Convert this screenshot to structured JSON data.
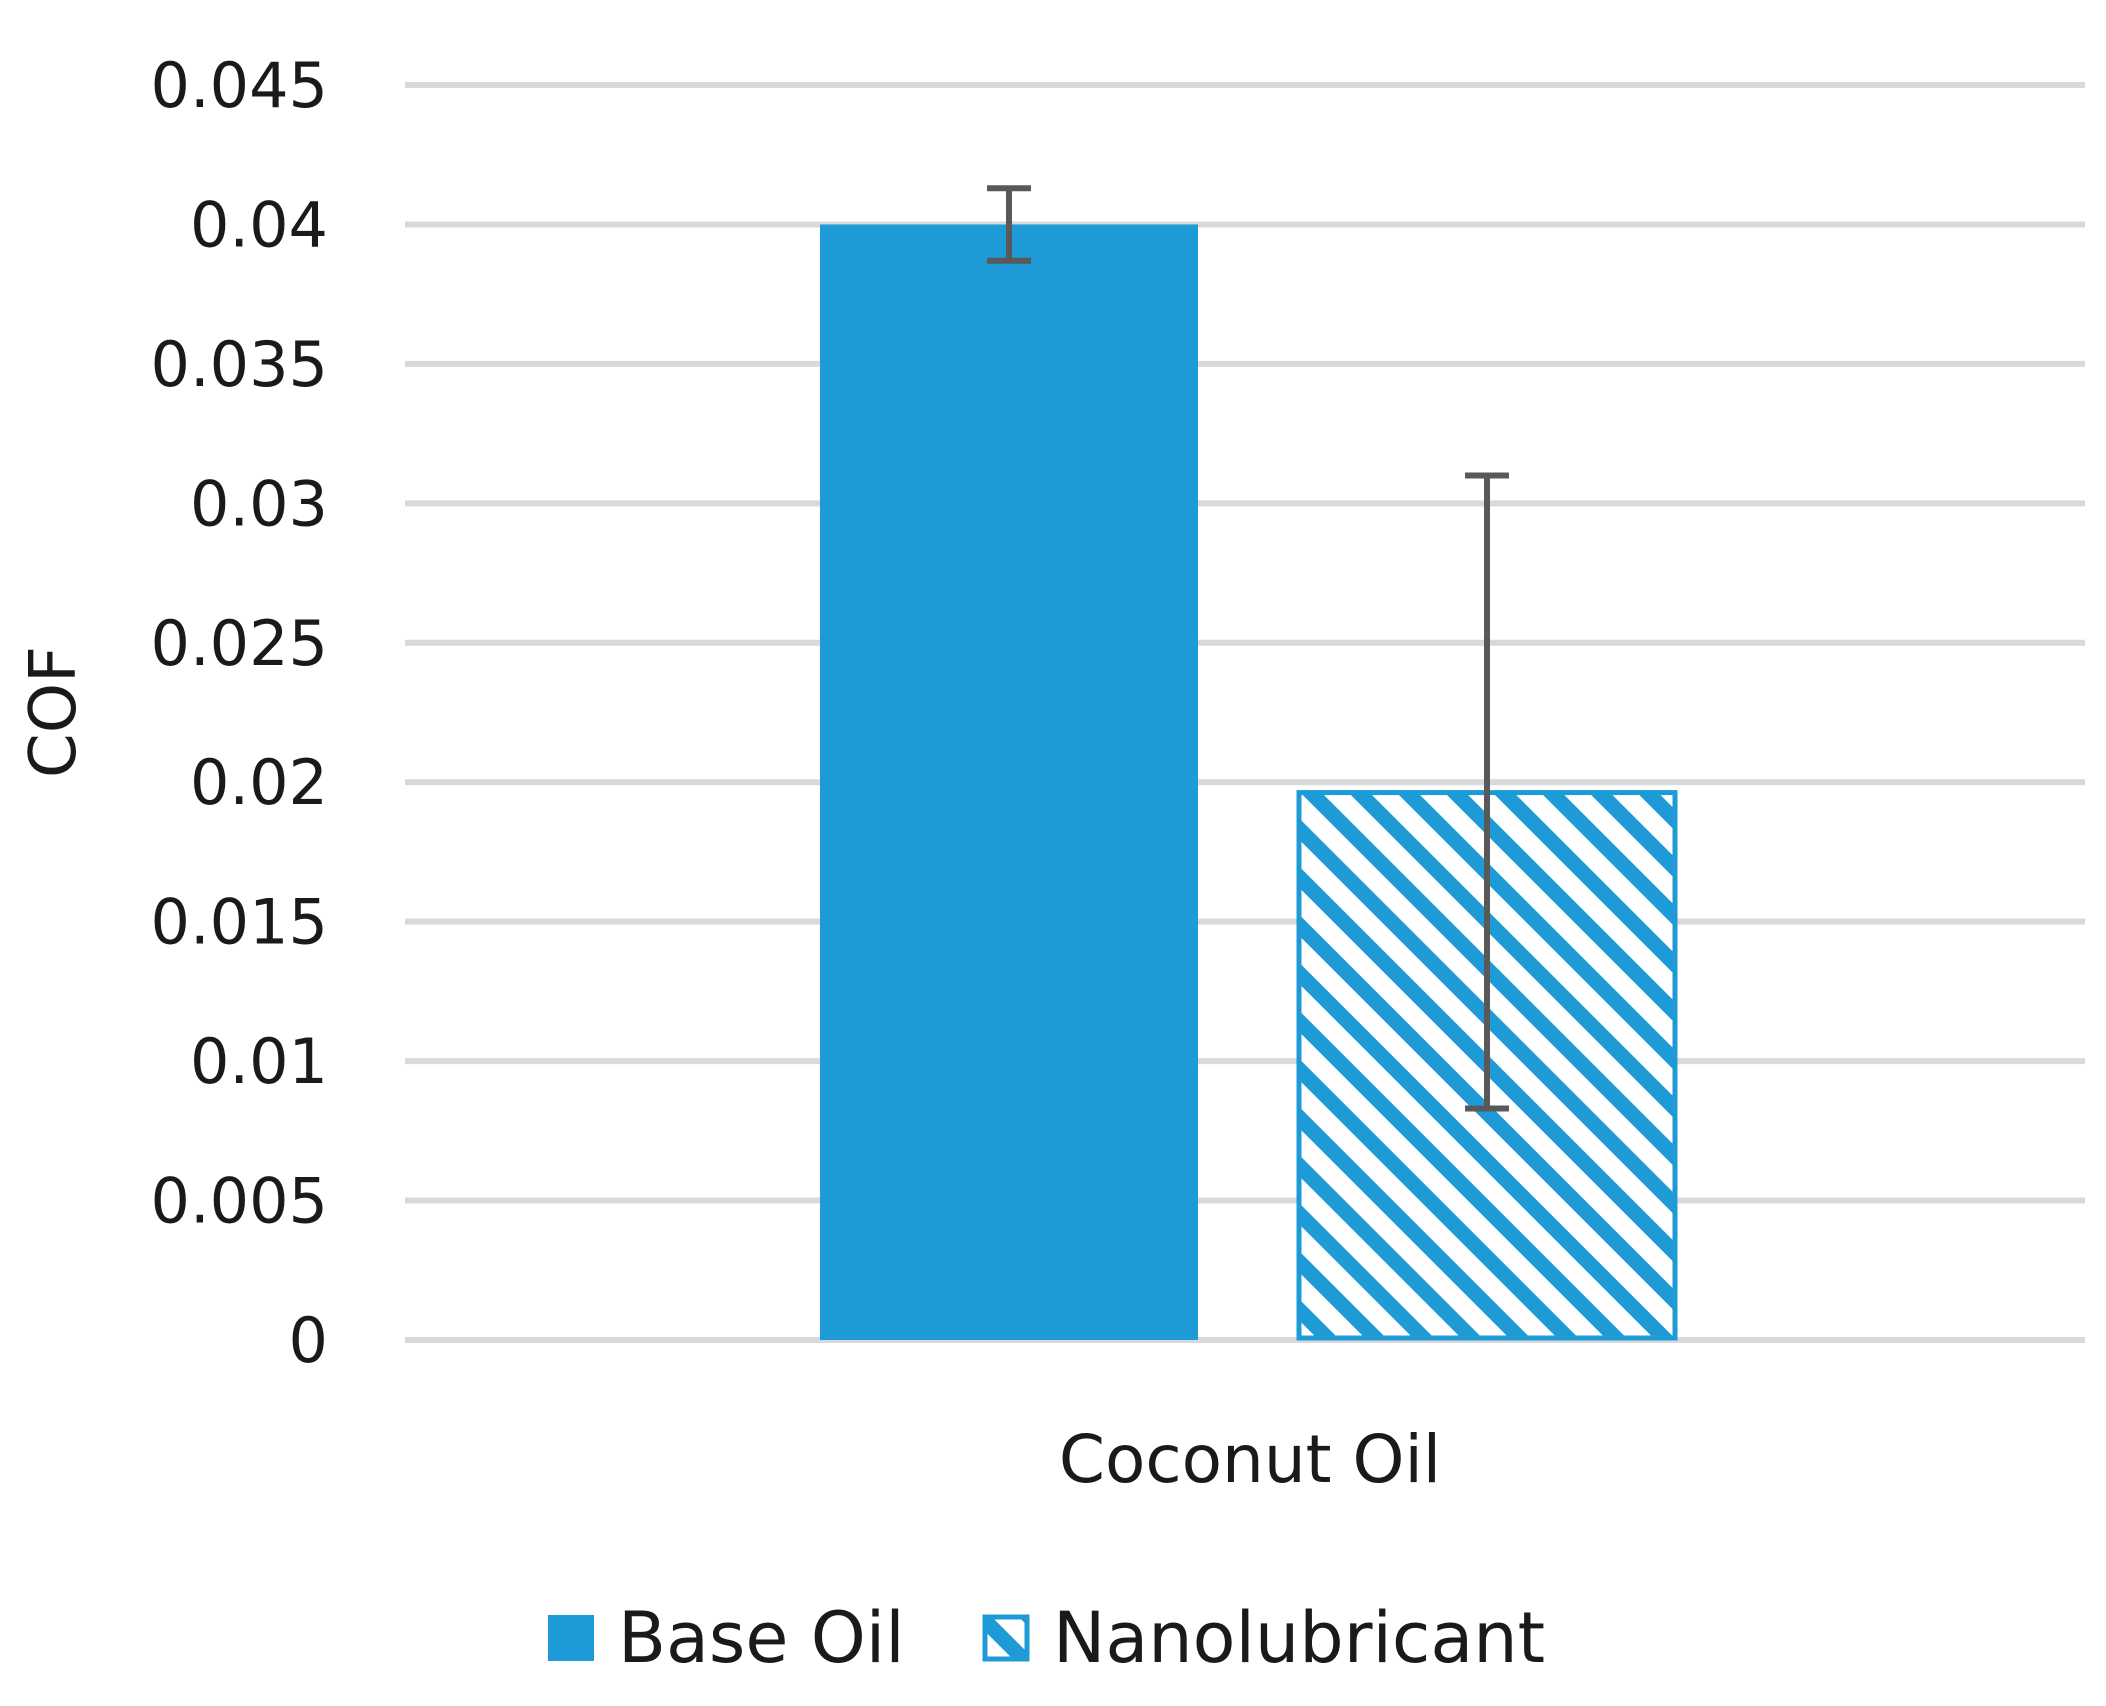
{
  "chart_data": {
    "type": "bar",
    "title": "",
    "xlabel": "",
    "ylabel": "COF",
    "ylim": [
      0,
      0.045
    ],
    "yticks": [
      "0",
      "0.005",
      "0.01",
      "0.015",
      "0.02",
      "0.025",
      "0.03",
      "0.035",
      "0.04",
      "0.045"
    ],
    "categories": [
      "Coconut Oil"
    ],
    "grid": true,
    "legend_position": "bottom",
    "series": [
      {
        "name": "Base Oil",
        "values": [
          0.04
        ],
        "error_low": [
          0.0387
        ],
        "error_high": [
          0.0413
        ],
        "color": "#1e9bd7",
        "pattern": "solid"
      },
      {
        "name": "Nanolubricant",
        "values": [
          0.0197
        ],
        "error_low": [
          0.0083
        ],
        "error_high": [
          0.031
        ],
        "color": "#1e9bd7",
        "pattern": "diagonal-stripes"
      }
    ],
    "error_bar_color": "#595959",
    "grid_color": "#d9d9d9"
  }
}
